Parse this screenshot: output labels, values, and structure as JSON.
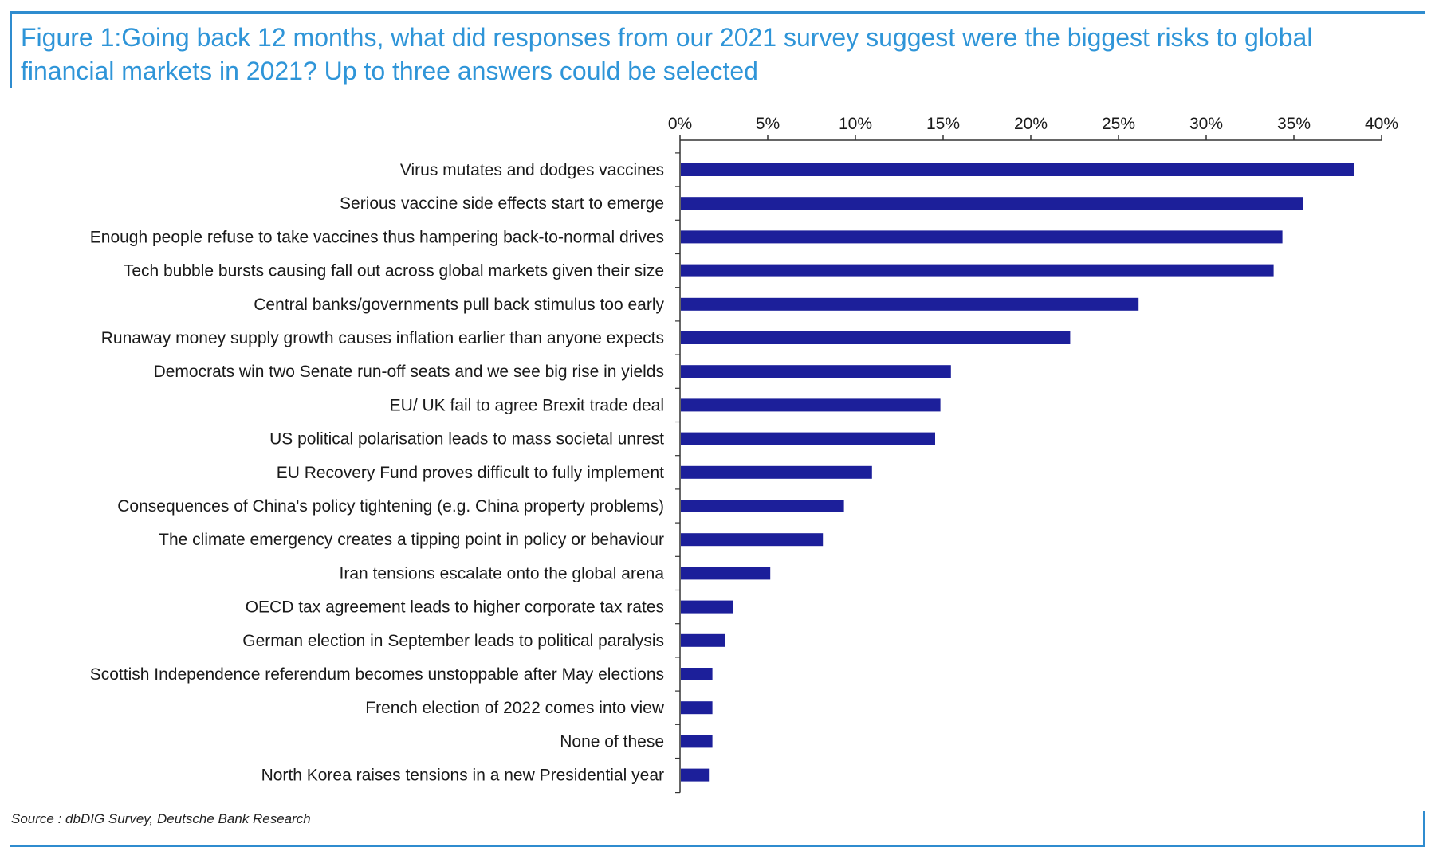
{
  "title": "Figure 1:Going back 12 months, what did responses from our 2021 survey suggest were the biggest risks to global financial markets in 2021? Up to three answers could be selected",
  "source": "Source : dbDIG Survey, Deutsche Bank Research",
  "colors": {
    "bar": "#1c1f9a",
    "accent": "#2f95d8",
    "frame": "#2f8ccf"
  },
  "chart_data": {
    "type": "bar",
    "orientation": "horizontal",
    "categories": [
      "Virus mutates and dodges vaccines",
      "Serious vaccine side effects start to emerge",
      "Enough people refuse to take vaccines thus hampering back-to-normal drives",
      "Tech bubble bursts causing fall out across global markets given their size",
      "Central banks/governments pull back stimulus too early",
      "Runaway money supply growth causes inflation earlier than anyone expects",
      "Democrats win two Senate run-off seats and we see big rise in yields",
      "EU/ UK fail to agree Brexit trade deal",
      "US political polarisation leads to mass societal unrest",
      "EU Recovery Fund proves difficult to fully implement",
      "Consequences of China's policy tightening (e.g. China property problems)",
      "The climate emergency creates a tipping point in policy or behaviour",
      "Iran tensions escalate onto the global arena",
      "OECD tax agreement leads to higher corporate tax rates",
      "German election in September leads to political paralysis",
      "Scottish Independence referendum becomes unstoppable after May elections",
      "French election of 2022 comes into view",
      "None of these",
      "North Korea raises tensions in a new Presidential year"
    ],
    "values": [
      38.4,
      35.5,
      34.3,
      33.8,
      26.1,
      22.2,
      15.4,
      14.8,
      14.5,
      10.9,
      9.3,
      8.1,
      5.1,
      3.0,
      2.5,
      1.8,
      1.8,
      1.8,
      1.6
    ],
    "unit": "%",
    "xlim": [
      0,
      40
    ],
    "ticks": [
      0,
      5,
      10,
      15,
      20,
      25,
      30,
      35,
      40
    ],
    "tick_labels": [
      "0%",
      "5%",
      "10%",
      "15%",
      "20%",
      "25%",
      "30%",
      "35%",
      "40%"
    ],
    "axis_position": "top",
    "grid": false,
    "legend": "none"
  }
}
